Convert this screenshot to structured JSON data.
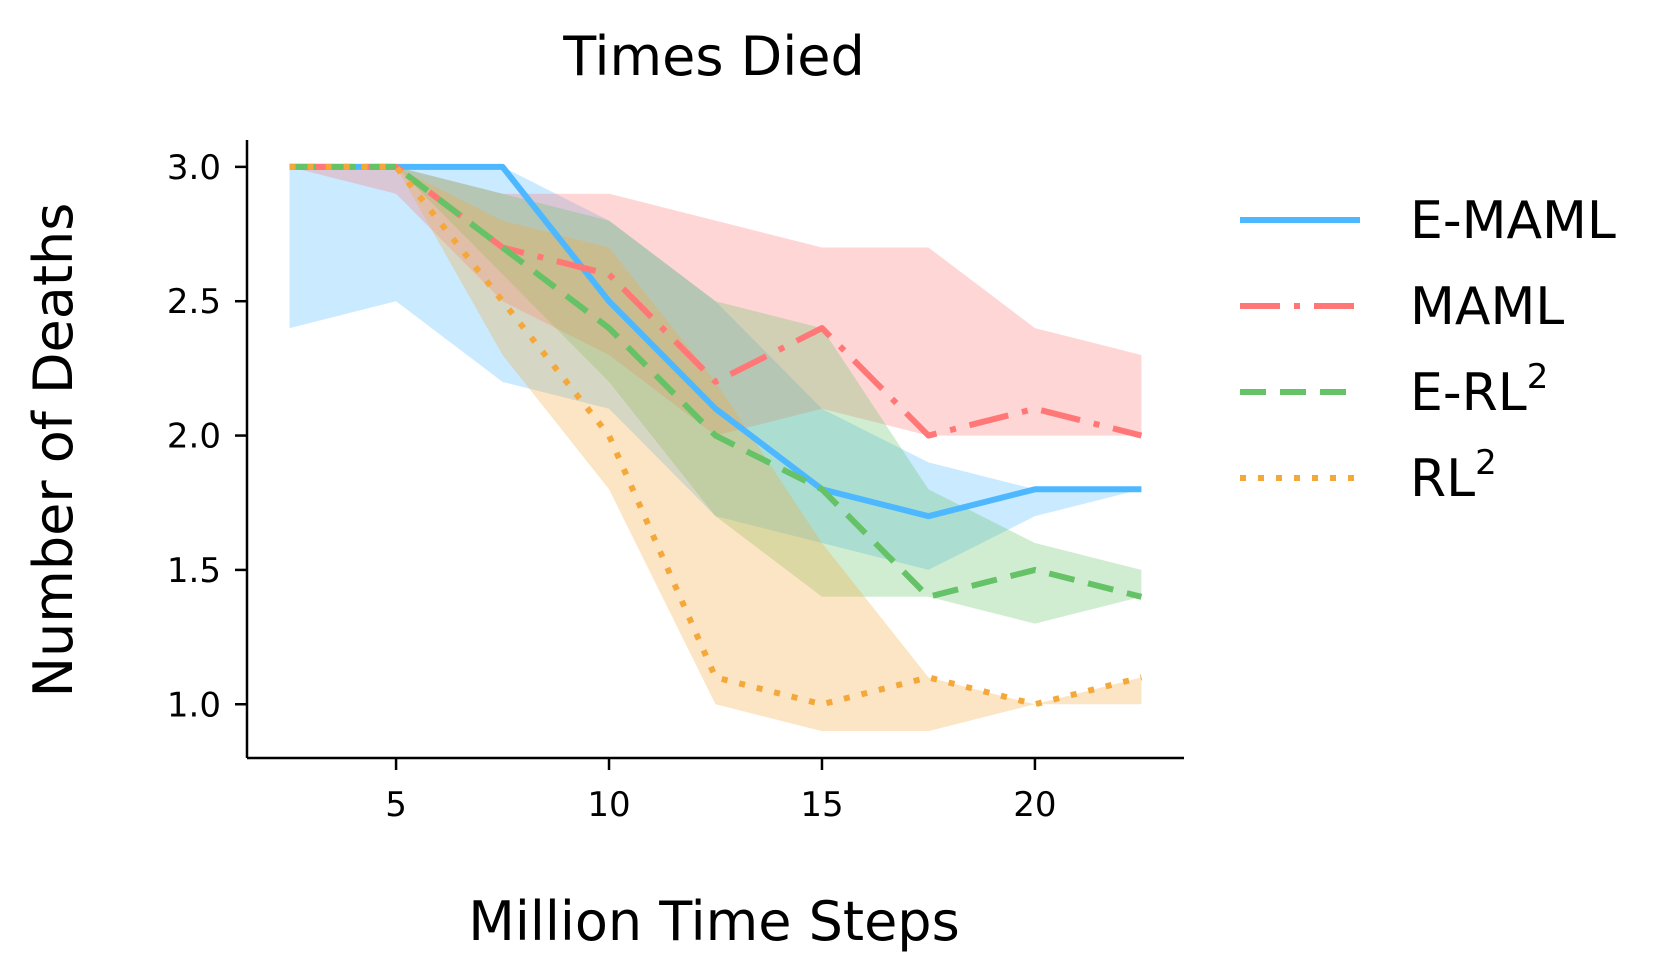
{
  "chart_data": {
    "type": "line",
    "title": "Times Died",
    "xlabel": "Million Time Steps",
    "ylabel": "Number of Deaths",
    "xlim": [
      1.5,
      23.5
    ],
    "ylim": [
      0.8,
      3.1
    ],
    "xticks": [
      5,
      10,
      15,
      20
    ],
    "xtick_labels": [
      "5",
      "10",
      "15",
      "20"
    ],
    "yticks": [
      1.0,
      1.5,
      2.0,
      2.5,
      3.0
    ],
    "ytick_labels": [
      "1.0",
      "1.5",
      "2.0",
      "2.5",
      "3.0"
    ],
    "grid": false,
    "legend_position": "right",
    "x": [
      2.5,
      5,
      7.5,
      10,
      12.5,
      15,
      17.5,
      20,
      22.5
    ],
    "series": [
      {
        "name": "E-MAML",
        "legend_base": "E-MAML",
        "legend_sup": "",
        "color": "#4db8ff",
        "dash": "solid",
        "values": [
          3.0,
          3.0,
          3.0,
          2.5,
          2.1,
          1.8,
          1.7,
          1.8,
          1.8
        ],
        "band_upper": [
          3.0,
          3.0,
          3.0,
          2.8,
          2.5,
          2.1,
          1.9,
          1.8,
          1.8
        ],
        "band_lower": [
          2.4,
          2.5,
          2.2,
          2.1,
          1.7,
          1.6,
          1.5,
          1.7,
          1.8
        ]
      },
      {
        "name": "MAML",
        "legend_base": "MAML",
        "legend_sup": "",
        "color": "#ff7777",
        "dash": "dashdot",
        "values": [
          3.0,
          3.0,
          2.7,
          2.6,
          2.2,
          2.4,
          2.0,
          2.1,
          2.0
        ],
        "band_upper": [
          3.0,
          3.0,
          2.9,
          2.9,
          2.8,
          2.7,
          2.7,
          2.4,
          2.3
        ],
        "band_lower": [
          3.0,
          2.9,
          2.5,
          2.3,
          2.0,
          2.1,
          2.0,
          2.0,
          2.0
        ]
      },
      {
        "name": "E-RL2",
        "legend_base": "E-RL",
        "legend_sup": "2",
        "color": "#66c266",
        "dash": "dashed",
        "values": [
          3.0,
          3.0,
          2.7,
          2.4,
          2.0,
          1.8,
          1.4,
          1.5,
          1.4
        ],
        "band_upper": [
          3.0,
          3.0,
          2.9,
          2.8,
          2.5,
          2.4,
          1.8,
          1.6,
          1.5
        ],
        "band_lower": [
          3.0,
          3.0,
          2.6,
          2.2,
          1.7,
          1.4,
          1.4,
          1.3,
          1.4
        ]
      },
      {
        "name": "RL2",
        "legend_base": "RL",
        "legend_sup": "2",
        "color": "#f5a83a",
        "dash": "dotted",
        "values": [
          3.0,
          3.0,
          2.5,
          2.0,
          1.1,
          1.0,
          1.1,
          1.0,
          1.1
        ],
        "band_upper": [
          3.0,
          3.0,
          2.8,
          2.7,
          2.2,
          1.6,
          1.1,
          1.0,
          1.1
        ],
        "band_lower": [
          3.0,
          3.0,
          2.3,
          1.8,
          1.0,
          0.9,
          0.9,
          1.0,
          1.0
        ]
      }
    ]
  }
}
